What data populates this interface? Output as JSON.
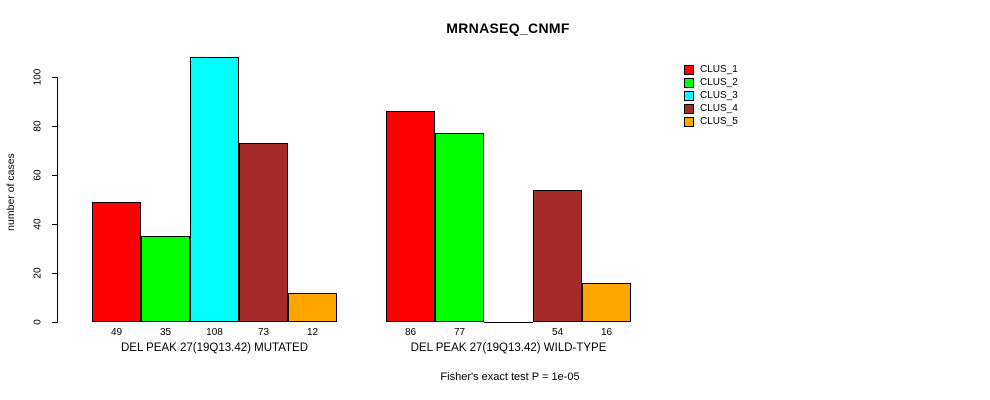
{
  "chart_data": {
    "type": "bar",
    "title": "MRNASEQ_CNMF",
    "ylabel": "number of cases",
    "xlabel": "",
    "ylim": [
      0,
      110
    ],
    "yticks": [
      0,
      20,
      40,
      60,
      80,
      100
    ],
    "grid": false,
    "legend_position": "right-outside",
    "categories": [
      "DEL PEAK 27(19Q13.42) MUTATED",
      "DEL PEAK 27(19Q13.42) WILD-TYPE"
    ],
    "series": [
      {
        "name": "CLUS_1",
        "color": "#FF0000",
        "values": [
          49,
          86
        ]
      },
      {
        "name": "CLUS_2",
        "color": "#00FF00",
        "values": [
          35,
          77
        ]
      },
      {
        "name": "CLUS_3",
        "color": "#00FFFF",
        "values": [
          108,
          0
        ]
      },
      {
        "name": "CLUS_4",
        "color": "#A52A2A",
        "values": [
          73,
          54
        ]
      },
      {
        "name": "CLUS_5",
        "color": "#FFA500",
        "values": [
          12,
          16
        ]
      }
    ],
    "bar_value_labels_shown": true,
    "zero_value_labels_hidden": true,
    "annotation": "Fisher's exact test P = 1e-05"
  }
}
